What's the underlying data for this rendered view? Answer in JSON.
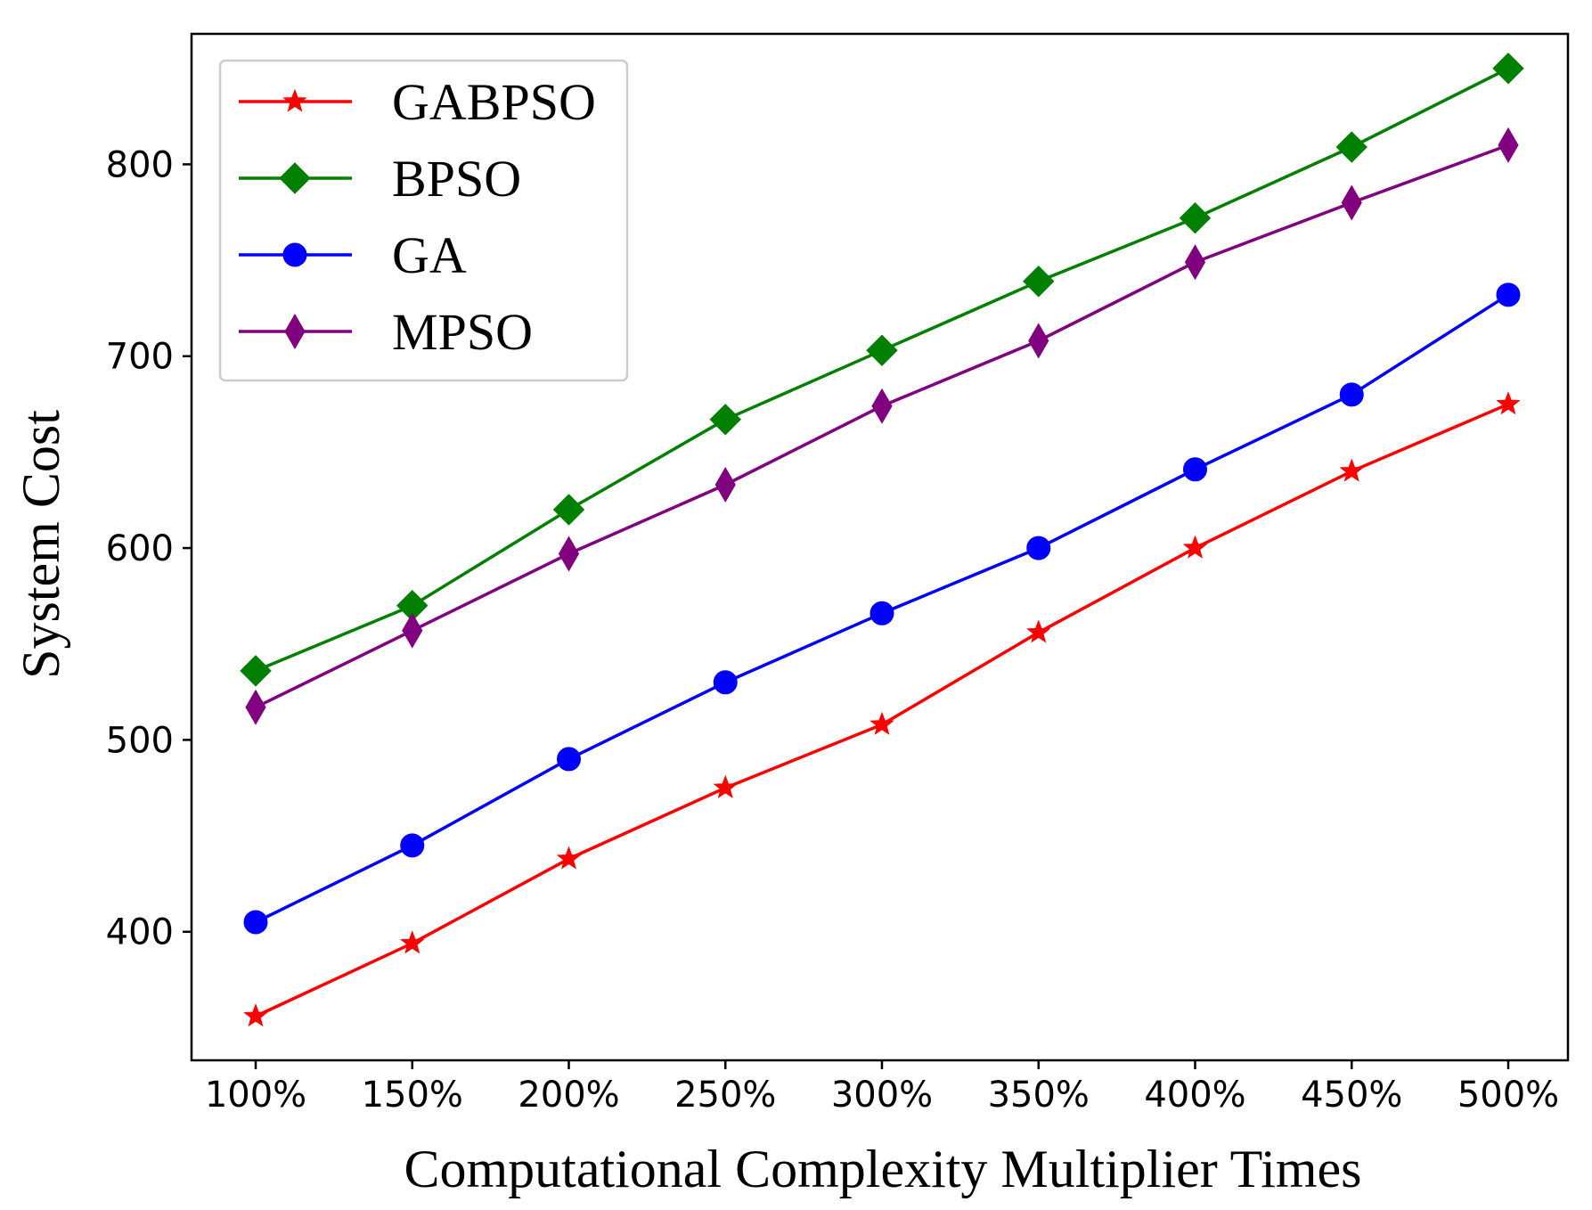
{
  "chart_data": {
    "type": "line",
    "title": "",
    "xlabel": "Computational Complexity Multiplier Times",
    "ylabel": "System Cost",
    "categories": [
      "100%",
      "150%",
      "200%",
      "250%",
      "300%",
      "350%",
      "400%",
      "450%",
      "500%"
    ],
    "yticks": [
      400,
      500,
      600,
      700,
      800
    ],
    "ylim": [
      333,
      868
    ],
    "grid": false,
    "legend_position": "top-left",
    "series": [
      {
        "name": "GABPSO",
        "color": "#ff0000",
        "marker": "star",
        "values": [
          356,
          394,
          438,
          475,
          508,
          556,
          600,
          640,
          675
        ]
      },
      {
        "name": "BPSO",
        "color": "#008000",
        "marker": "diamond",
        "values": [
          536,
          570,
          620,
          667,
          703,
          739,
          772,
          809,
          850
        ]
      },
      {
        "name": "GA",
        "color": "#0000ff",
        "marker": "circle",
        "values": [
          405,
          445,
          490,
          530,
          566,
          600,
          641,
          680,
          732
        ]
      },
      {
        "name": "MPSO",
        "color": "#800080",
        "marker": "thin-diamond",
        "values": [
          517,
          557,
          597,
          633,
          674,
          708,
          749,
          780,
          810
        ]
      }
    ]
  }
}
